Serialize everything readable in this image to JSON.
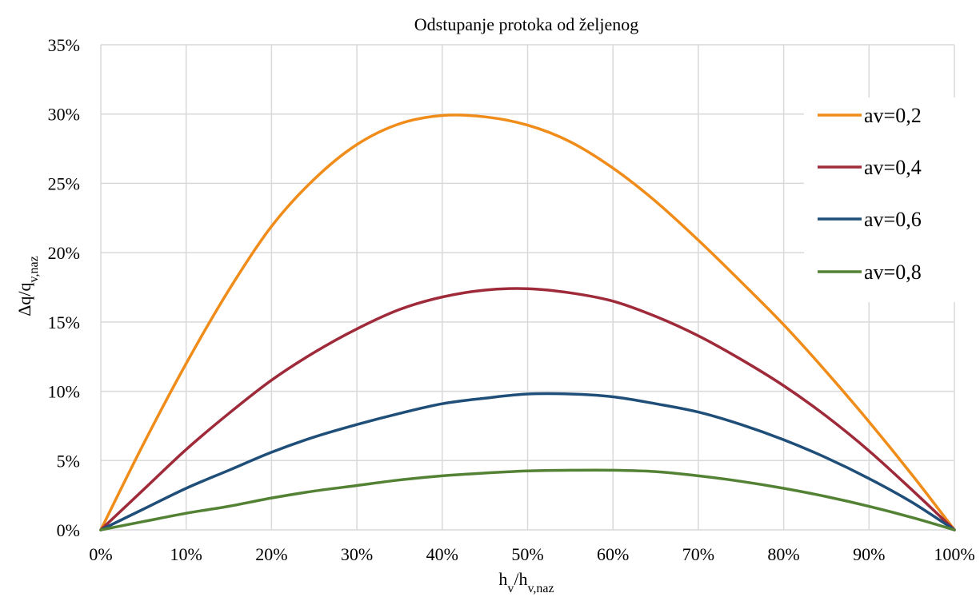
{
  "chart_data": {
    "type": "line",
    "title": "Odstupanje protoka od željenog",
    "xlabel": {
      "main": "h",
      "sub1": "v",
      "mid": "/h",
      "sub2": "v,naz"
    },
    "ylabel": {
      "main": "Δq/q",
      "sub": "v,naz"
    },
    "xlim": [
      0,
      100
    ],
    "ylim": [
      0,
      35
    ],
    "x_ticks": [
      0,
      10,
      20,
      30,
      40,
      50,
      60,
      70,
      80,
      90,
      100
    ],
    "x_tick_labels": [
      "0%",
      "10%",
      "20%",
      "30%",
      "40%",
      "50%",
      "60%",
      "70%",
      "80%",
      "90%",
      "100%"
    ],
    "y_ticks": [
      0,
      5,
      10,
      15,
      20,
      25,
      30,
      35
    ],
    "y_tick_labels": [
      "0%",
      "5%",
      "10%",
      "15%",
      "20%",
      "25%",
      "30%",
      "35%"
    ],
    "grid": true,
    "legend_position": "right",
    "x": [
      0,
      5,
      10,
      15,
      20,
      25,
      30,
      35,
      40,
      45,
      50,
      55,
      60,
      65,
      70,
      75,
      80,
      85,
      90,
      95,
      100
    ],
    "series": [
      {
        "name": "av=0,2",
        "color": "#f08c1a",
        "values": [
          0,
          6.2,
          12.0,
          17.3,
          21.9,
          25.3,
          27.8,
          29.3,
          29.9,
          29.8,
          29.2,
          28.0,
          26.1,
          23.7,
          20.9,
          17.9,
          14.8,
          11.4,
          7.8,
          4.0,
          0
        ]
      },
      {
        "name": "av=0,4",
        "color": "#9e2a3a",
        "values": [
          0,
          2.9,
          5.8,
          8.4,
          10.8,
          12.8,
          14.5,
          15.9,
          16.8,
          17.3,
          17.4,
          17.1,
          16.5,
          15.4,
          14.0,
          12.3,
          10.4,
          8.2,
          5.7,
          2.9,
          0
        ]
      },
      {
        "name": "av=0,6",
        "color": "#1f4e79",
        "values": [
          0,
          1.5,
          3.0,
          4.3,
          5.6,
          6.7,
          7.6,
          8.4,
          9.1,
          9.5,
          9.8,
          9.8,
          9.6,
          9.1,
          8.5,
          7.6,
          6.5,
          5.2,
          3.7,
          2.0,
          0
        ]
      },
      {
        "name": "av=0,8",
        "color": "#548235",
        "values": [
          0,
          0.6,
          1.2,
          1.7,
          2.3,
          2.8,
          3.2,
          3.6,
          3.9,
          4.1,
          4.25,
          4.3,
          4.3,
          4.2,
          3.9,
          3.5,
          3.0,
          2.4,
          1.7,
          0.9,
          0
        ]
      }
    ]
  }
}
